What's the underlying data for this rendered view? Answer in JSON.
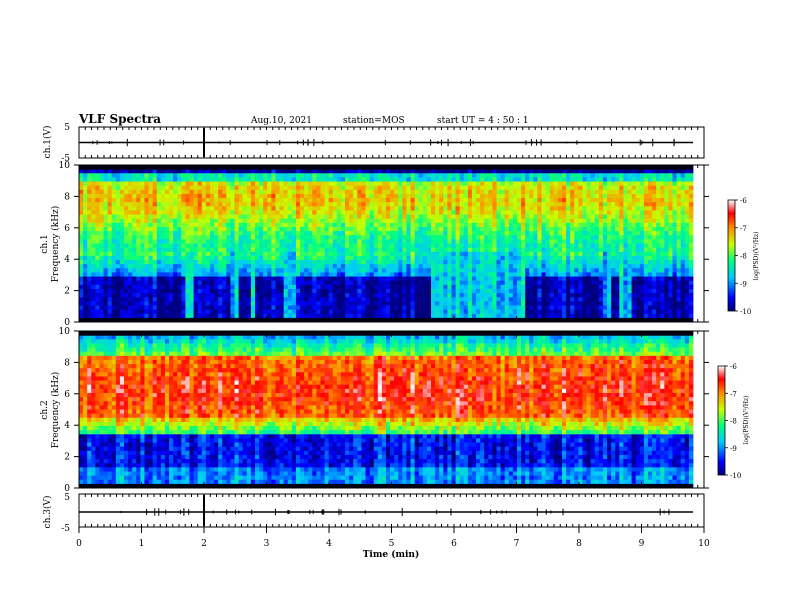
{
  "header": {
    "title": "VLF Spectra",
    "date": "Aug.10, 2021",
    "station": "station=MOS",
    "start": "start  UT =   4 : 50 : 1"
  },
  "chart_data": [
    {
      "type": "line",
      "name": "ch1-waveform",
      "ylabel": "ch.1(V)",
      "ylim": [
        -5,
        5
      ],
      "yticks": [
        "5",
        "-5"
      ],
      "xlim": [
        0,
        10
      ],
      "values_note": ""
    },
    {
      "type": "heatmap",
      "name": "ch1-spectrogram",
      "ylabel": "ch.1\nFrequency (kHz)",
      "ylabel_lines": [
        "ch.1",
        "Frequency (kHz)"
      ],
      "ylim": [
        0,
        10
      ],
      "yticks": [
        0,
        2,
        4,
        6,
        8,
        10
      ],
      "xlim": [
        0,
        10
      ],
      "colorbar": {
        "label": "log(PSD)(V²/Hz)",
        "range": [
          -10,
          -6
        ],
        "ticks": [
          "-6",
          "-7",
          "-8",
          "-9",
          "-10"
        ]
      },
      "noise_floor_gaps_min": [
        [
          1.72,
          1.84
        ],
        [
          2.42,
          2.55
        ],
        [
          2.72,
          2.84
        ],
        [
          3.3,
          3.45
        ],
        [
          5.65,
          7.15
        ],
        [
          8.4,
          8.5
        ],
        [
          8.65,
          8.85
        ]
      ]
    },
    {
      "type": "heatmap",
      "name": "ch2-spectrogram",
      "ylabel_lines": [
        "ch.2",
        "Frequency (kHz)"
      ],
      "ylim": [
        0,
        10
      ],
      "yticks": [
        0,
        2,
        4,
        6,
        8,
        10
      ],
      "xlim": [
        0,
        10
      ],
      "colorbar": {
        "label": "log(PSD)(V²/Hz)",
        "range": [
          -10,
          -6
        ],
        "ticks": [
          "-6",
          "-7",
          "-8",
          "-9",
          "-10"
        ]
      }
    },
    {
      "type": "line",
      "name": "ch3-waveform",
      "ylabel": "ch.3(V)",
      "ylim": [
        -5,
        5
      ],
      "yticks": [
        "5",
        "-5"
      ],
      "xlim": [
        0,
        10
      ],
      "xlabel": "Time (min)",
      "xticks": [
        0,
        1,
        2,
        3,
        4,
        5,
        6,
        7,
        8,
        9,
        10
      ]
    }
  ]
}
